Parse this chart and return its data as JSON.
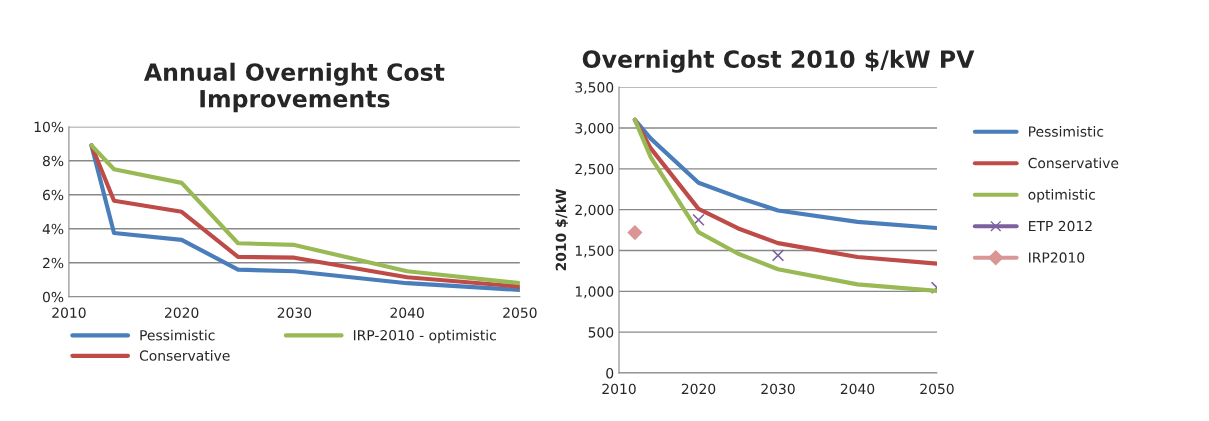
{
  "chart_data": [
    {
      "type": "line",
      "title": "Annual Overnight Cost\nImprovements",
      "x": [
        2012,
        2014,
        2020,
        2025,
        2030,
        2040,
        2050
      ],
      "xlim": [
        2010,
        2050
      ],
      "xticks": [
        2010,
        2020,
        2030,
        2040,
        2050
      ],
      "ylim": [
        0,
        10
      ],
      "yticks": [
        {
          "value": 0,
          "label": "0%"
        },
        {
          "value": 2,
          "label": "2%"
        },
        {
          "value": 4,
          "label": "4%"
        },
        {
          "value": 6,
          "label": "6%"
        },
        {
          "value": 8,
          "label": "8%"
        },
        {
          "value": 10,
          "label": "10%"
        }
      ],
      "grid": "y",
      "legend": "bottom",
      "marker": "none",
      "series": [
        {
          "name": "Pessimistic",
          "color": "#4a7ebb",
          "values": [
            8.9,
            3.75,
            3.35,
            1.6,
            1.5,
            0.8,
            0.4
          ]
        },
        {
          "name": "Conservative",
          "color": "#be4b48",
          "values": [
            8.9,
            5.65,
            5.0,
            2.35,
            2.3,
            1.15,
            0.6
          ]
        },
        {
          "name": "IRP-2010 - optimistic",
          "color": "#98b954",
          "values": [
            8.9,
            7.5,
            6.7,
            3.15,
            3.05,
            1.5,
            0.8
          ]
        }
      ]
    },
    {
      "type": "line",
      "title": "Overnight Cost 2010 $/kW PV",
      "ylabel": "2010 $/kW",
      "xlim": [
        2010,
        2050
      ],
      "xticks": [
        2010,
        2020,
        2030,
        2040,
        2050
      ],
      "ylim": [
        0,
        3500
      ],
      "yticks": [
        {
          "value": 0,
          "label": "0"
        },
        {
          "value": 500,
          "label": "500"
        },
        {
          "value": 1000,
          "label": "1,000"
        },
        {
          "value": 1500,
          "label": "1,500"
        },
        {
          "value": 2000,
          "label": "2,000"
        },
        {
          "value": 2500,
          "label": "2,500"
        },
        {
          "value": 3000,
          "label": "3,000"
        },
        {
          "value": 3500,
          "label": "3,500"
        }
      ],
      "grid": "y",
      "legend": "right",
      "series": [
        {
          "name": "Pessimistic",
          "color": "#4a7ebb",
          "x": [
            2012,
            2014,
            2020,
            2025,
            2030,
            2040,
            2050
          ],
          "values": [
            3100,
            2870,
            2330,
            2150,
            1990,
            1850,
            1775
          ],
          "marker": "none"
        },
        {
          "name": "Conservative",
          "color": "#be4b48",
          "x": [
            2012,
            2014,
            2020,
            2025,
            2030,
            2040,
            2050
          ],
          "values": [
            3100,
            2750,
            2010,
            1770,
            1590,
            1420,
            1340
          ],
          "marker": "none"
        },
        {
          "name": "optimistic",
          "color": "#98b954",
          "x": [
            2012,
            2014,
            2020,
            2025,
            2030,
            2040,
            2050
          ],
          "values": [
            3100,
            2640,
            1725,
            1460,
            1270,
            1085,
            1005
          ],
          "marker": "none"
        },
        {
          "name": "ETP 2012",
          "type": "scatter",
          "color": "#7d60a0",
          "x": [
            2020,
            2030,
            2050
          ],
          "values": [
            1875,
            1440,
            1045
          ],
          "marker": "cross"
        },
        {
          "name": "IRP2010",
          "type": "scatter",
          "color": "#d99694",
          "x": [
            2012
          ],
          "values": [
            1720
          ],
          "marker": "diamond"
        }
      ]
    }
  ]
}
